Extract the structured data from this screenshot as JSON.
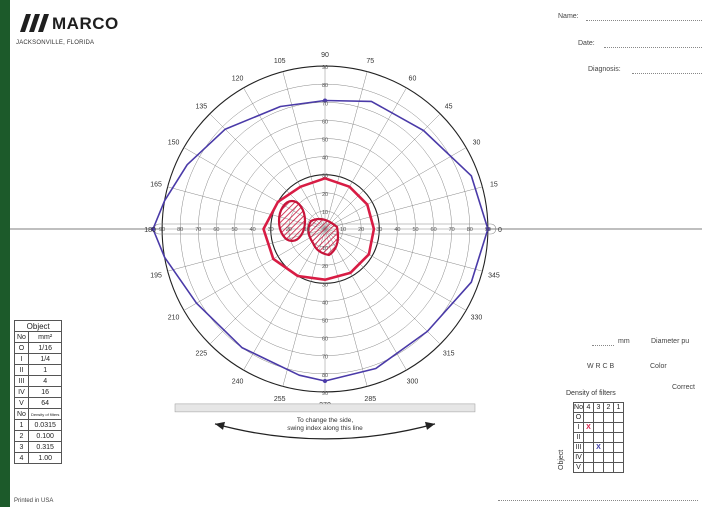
{
  "brand": {
    "name": "MARCO",
    "location": "JACKSONVILLE, FLORIDA"
  },
  "fields": {
    "name": "Name:",
    "date": "Date:",
    "diagnosis": "Diagnosis:"
  },
  "side": {
    "mm": "mm",
    "diameter": "Diameter pu",
    "codes": "W  R  C  B",
    "color": "Color",
    "correction": "Correct"
  },
  "chart": {
    "meridian_labels": [
      "0",
      "15",
      "30",
      "45",
      "60",
      "75",
      "90",
      "105",
      "120",
      "135",
      "150",
      "165",
      "180",
      "195",
      "210",
      "225",
      "240",
      "255",
      "270",
      "285",
      "300",
      "315",
      "330",
      "345"
    ],
    "ring_labels": [
      "10",
      "20",
      "30",
      "40",
      "50",
      "60",
      "70",
      "80",
      "90"
    ],
    "bottom_text": [
      "To change the side,",
      "swing index along this line"
    ],
    "colors": {
      "outer_isopter": "#4a3aa8",
      "inner_isopter": "#d81c44",
      "scotoma": "#c8143a"
    }
  },
  "object_table": {
    "title": "Object",
    "col1": "No",
    "col2": "mm²",
    "rows": [
      [
        "O",
        "1/16"
      ],
      [
        "I",
        "1/4"
      ],
      [
        "II",
        "1"
      ],
      [
        "III",
        "4"
      ],
      [
        "IV",
        "16"
      ],
      [
        "V",
        "64"
      ]
    ],
    "density_header": "Density of filters",
    "density_rows": [
      [
        "1",
        "0.0315"
      ],
      [
        "2",
        "0.100"
      ],
      [
        "3",
        "0.315"
      ],
      [
        "4",
        "1.00"
      ]
    ]
  },
  "printed": "Printed in USA",
  "density_grid": {
    "title": "Density of filters",
    "header": [
      "No",
      "4",
      "3",
      "2",
      "1"
    ],
    "rows": [
      "O",
      "I",
      "II",
      "III",
      "IV",
      "V"
    ],
    "marks": [
      {
        "row": 1,
        "col": 1,
        "symbol": "X",
        "color": "#d81c44"
      },
      {
        "row": 3,
        "col": 2,
        "symbol": "X",
        "color": "#3a3aa8"
      }
    ],
    "object_label": "Object"
  }
}
